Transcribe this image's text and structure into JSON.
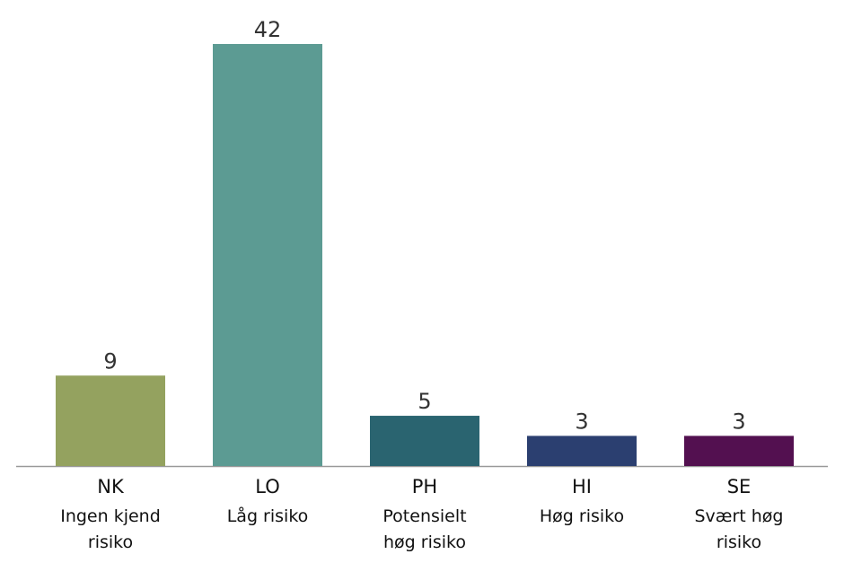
{
  "chart_data": {
    "type": "bar",
    "categories": [
      "NK",
      "LO",
      "PH",
      "HI",
      "SE"
    ],
    "descriptions": [
      "Ingen kjend risiko",
      "Låg risiko",
      "Potensielt høg risiko",
      "Høg risiko",
      "Svært høg risiko"
    ],
    "values": [
      9,
      42,
      5,
      3,
      3
    ],
    "colors": [
      "#94a25f",
      "#5c9b93",
      "#2a6470",
      "#2b3f70",
      "#531050"
    ],
    "ylim": [
      0,
      42
    ]
  }
}
